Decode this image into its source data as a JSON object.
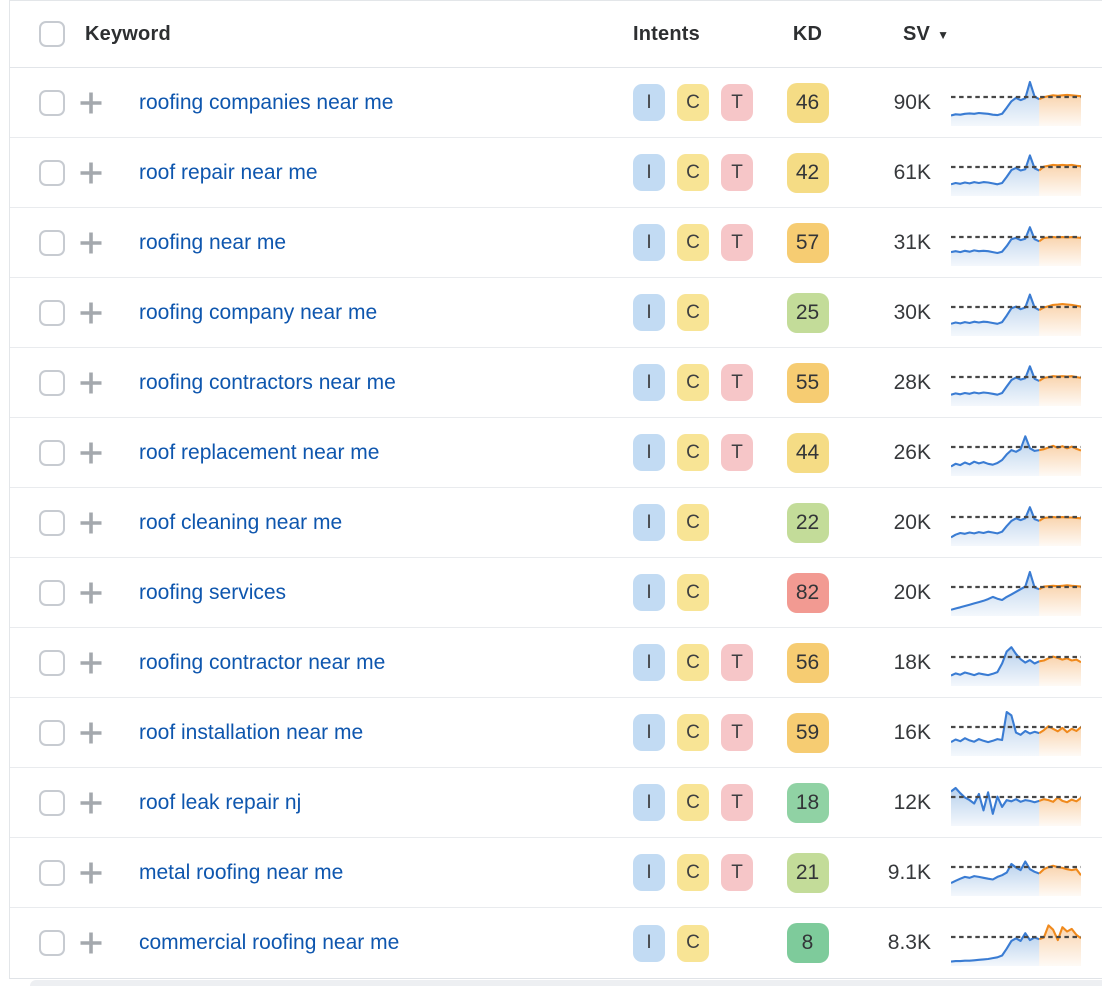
{
  "table": {
    "columns": {
      "keyword": "Keyword",
      "intents": "Intents",
      "kd": "KD",
      "sv": "SV"
    },
    "sort": {
      "column": "SV",
      "direction": "desc"
    },
    "rows": [
      {
        "keyword": "roofing companies near me",
        "intents": [
          "I",
          "C",
          "T"
        ],
        "kd": "46",
        "kd_color": "#f5dc85",
        "sv": "90K",
        "spark": {
          "blue": [
            22,
            25,
            24,
            26,
            27,
            26,
            28,
            27,
            26,
            24,
            23,
            26,
            40,
            55,
            63,
            58,
            62,
            100,
            66,
            60
          ],
          "orange": [
            65,
            67,
            69,
            68,
            69,
            70,
            69,
            68,
            67
          ]
        }
      },
      {
        "keyword": "roof repair near me",
        "intents": [
          "I",
          "C",
          "T"
        ],
        "kd": "42",
        "kd_color": "#f5dc85",
        "sv": "61K",
        "spark": {
          "blue": [
            25,
            28,
            26,
            29,
            27,
            30,
            28,
            30,
            29,
            27,
            25,
            28,
            42,
            58,
            63,
            57,
            60,
            92,
            62,
            57
          ],
          "orange": [
            66,
            68,
            70,
            69,
            70,
            69,
            70,
            68,
            67
          ]
        }
      },
      {
        "keyword": "roofing near me",
        "intents": [
          "I",
          "C",
          "T"
        ],
        "kd": "57",
        "kd_color": "#f6cc72",
        "sv": "31K",
        "spark": {
          "blue": [
            30,
            32,
            30,
            33,
            31,
            34,
            32,
            33,
            32,
            30,
            28,
            31,
            44,
            60,
            63,
            58,
            61,
            88,
            60,
            55
          ],
          "orange": [
            63,
            64,
            65,
            64,
            65,
            64,
            65,
            64,
            63
          ]
        }
      },
      {
        "keyword": "roofing company near me",
        "intents": [
          "I",
          "C"
        ],
        "kd": "25",
        "kd_color": "#c3dc99",
        "sv": "30K",
        "spark": {
          "blue": [
            26,
            29,
            27,
            30,
            28,
            31,
            29,
            31,
            30,
            28,
            26,
            30,
            45,
            62,
            66,
            60,
            64,
            94,
            64,
            58
          ],
          "orange": [
            64,
            67,
            70,
            71,
            72,
            71,
            70,
            68,
            66
          ]
        }
      },
      {
        "keyword": "roofing contractors near me",
        "intents": [
          "I",
          "C",
          "T"
        ],
        "kd": "55",
        "kd_color": "#f6cc72",
        "sv": "28K",
        "spark": {
          "blue": [
            24,
            27,
            25,
            28,
            26,
            29,
            27,
            29,
            28,
            26,
            24,
            28,
            43,
            58,
            64,
            59,
            62,
            90,
            61,
            56
          ],
          "orange": [
            63,
            65,
            67,
            66,
            67,
            66,
            67,
            65,
            63
          ]
        }
      },
      {
        "keyword": "roof replacement near me",
        "intents": [
          "I",
          "C",
          "T"
        ],
        "kd": "44",
        "kd_color": "#f5dc85",
        "sv": "26K",
        "spark": {
          "blue": [
            20,
            26,
            23,
            29,
            25,
            31,
            27,
            30,
            26,
            24,
            28,
            35,
            48,
            58,
            54,
            60,
            90,
            62,
            56,
            58
          ],
          "orange": [
            60,
            64,
            68,
            63,
            67,
            62,
            66,
            61,
            57
          ]
        }
      },
      {
        "keyword": "roof cleaning near me",
        "intents": [
          "I",
          "C"
        ],
        "kd": "22",
        "kd_color": "#c3dc99",
        "sv": "20K",
        "spark": {
          "blue": [
            18,
            24,
            28,
            26,
            29,
            27,
            30,
            28,
            31,
            29,
            27,
            31,
            44,
            56,
            62,
            58,
            62,
            88,
            60,
            56
          ],
          "orange": [
            63,
            64,
            65,
            64,
            65,
            64,
            64,
            63,
            62
          ]
        }
      },
      {
        "keyword": "roofing services",
        "intents": [
          "I",
          "C"
        ],
        "kd": "82",
        "kd_color": "#f29a92",
        "sv": "20K",
        "spark": {
          "blue": [
            12,
            15,
            18,
            21,
            24,
            27,
            30,
            33,
            37,
            42,
            38,
            35,
            42,
            48,
            54,
            60,
            66,
            100,
            64,
            60
          ],
          "orange": [
            66,
            67,
            68,
            67,
            68,
            69,
            68,
            67,
            66
          ]
        }
      },
      {
        "keyword": "roofing contractor near me",
        "intents": [
          "I",
          "C",
          "T"
        ],
        "kd": "56",
        "kd_color": "#f6cc72",
        "sv": "18K",
        "spark": {
          "blue": [
            22,
            27,
            24,
            29,
            26,
            23,
            27,
            25,
            23,
            26,
            30,
            50,
            78,
            88,
            72,
            60,
            52,
            58,
            50,
            55
          ],
          "orange": [
            57,
            62,
            66,
            63,
            59,
            62,
            57,
            59,
            53
          ]
        }
      },
      {
        "keyword": "roof installation near me",
        "intents": [
          "I",
          "C",
          "T"
        ],
        "kd": "59",
        "kd_color": "#f6cc72",
        "sv": "16K",
        "spark": {
          "blue": [
            30,
            36,
            32,
            39,
            34,
            31,
            37,
            33,
            30,
            33,
            37,
            35,
            100,
            92,
            52,
            47,
            56,
            50,
            54,
            51
          ],
          "orange": [
            58,
            67,
            61,
            55,
            63,
            53,
            61,
            56,
            65
          ]
        }
      },
      {
        "keyword": "roof leak repair nj",
        "intents": [
          "I",
          "C",
          "T"
        ],
        "kd": "18",
        "kd_color": "#90d2a4",
        "sv": "12K",
        "spark": {
          "blue": [
            78,
            86,
            74,
            64,
            58,
            50,
            72,
            34,
            76,
            26,
            66,
            42,
            58,
            55,
            60,
            54,
            58,
            56,
            53,
            56
          ],
          "orange": [
            60,
            58,
            54,
            64,
            56,
            53,
            59,
            55,
            63
          ]
        }
      },
      {
        "keyword": "metal roofing near me",
        "intents": [
          "I",
          "C",
          "T"
        ],
        "kd": "21",
        "kd_color": "#c3dc99",
        "sv": "9.1K",
        "spark": {
          "blue": [
            28,
            33,
            38,
            42,
            40,
            44,
            42,
            40,
            38,
            36,
            42,
            46,
            52,
            72,
            64,
            58,
            78,
            60,
            54,
            50
          ],
          "orange": [
            60,
            65,
            68,
            65,
            63,
            60,
            58,
            60,
            46
          ]
        }
      },
      {
        "keyword": "commercial roofing near me",
        "intents": [
          "I",
          "C"
        ],
        "kd": "8",
        "kd_color": "#7ecb9b",
        "sv": "8.3K",
        "spark": {
          "blue": [
            8,
            9,
            9,
            10,
            10,
            11,
            12,
            13,
            14,
            16,
            18,
            22,
            38,
            56,
            62,
            56,
            74,
            58,
            64,
            60
          ],
          "orange": [
            64,
            92,
            82,
            58,
            88,
            78,
            84,
            70,
            62
          ]
        }
      }
    ]
  },
  "icons": {
    "sort_desc": "▼",
    "add": "plus-icon",
    "select": "checkbox"
  },
  "colors": {
    "intent": {
      "I": "#c2dbf3",
      "C": "#f8e495",
      "T": "#f6c6c8"
    },
    "link": "#0e56ae",
    "spark": {
      "blue_line": "#3a7cd3",
      "orange_line": "#f08a1d",
      "dash": "#474747"
    }
  }
}
